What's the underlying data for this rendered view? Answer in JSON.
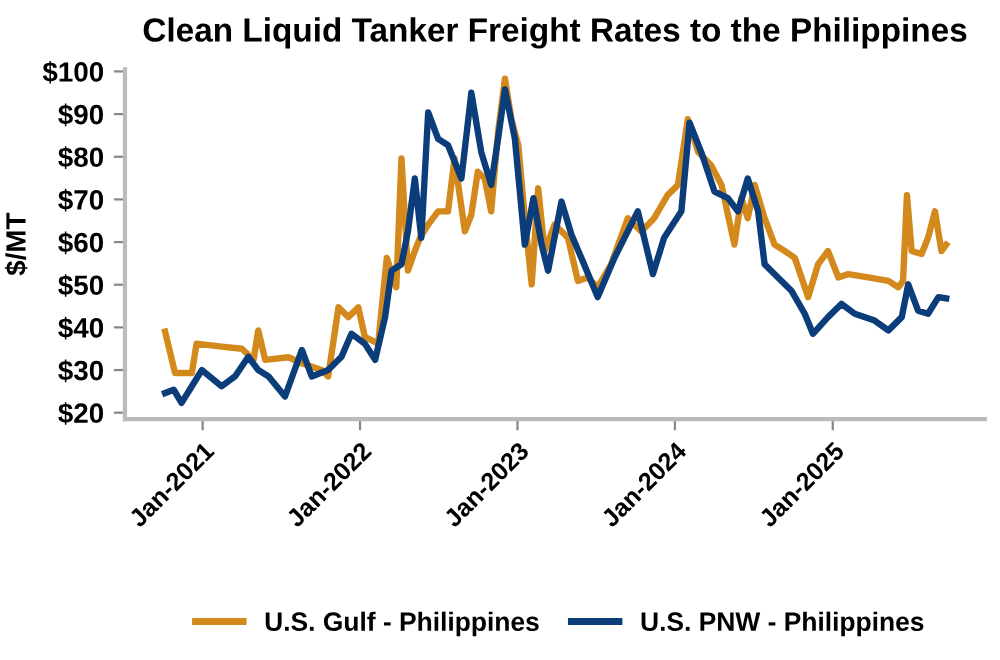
{
  "chart_data": {
    "type": "line",
    "title": "Clean Liquid Tanker Freight Rates to the Philippines",
    "ylabel": "$/MT",
    "xlim": [
      "2020-07-05",
      "2025-12-20"
    ],
    "xticks": [
      {
        "value": "2021-01-01",
        "label": "Jan-2021"
      },
      {
        "value": "2022-01-01",
        "label": "Jan-2022"
      },
      {
        "value": "2023-01-01",
        "label": "Jan-2023"
      },
      {
        "value": "2024-01-01",
        "label": "Jan-2024"
      },
      {
        "value": "2025-01-01",
        "label": "Jan-2025"
      }
    ],
    "ylim": [
      18.5,
      100.5
    ],
    "yticks": [
      {
        "value": 20,
        "label": "$20"
      },
      {
        "value": 30,
        "label": "$30"
      },
      {
        "value": 40,
        "label": "$40"
      },
      {
        "value": 50,
        "label": "$50"
      },
      {
        "value": 60,
        "label": "$60"
      },
      {
        "value": 70,
        "label": "$70"
      },
      {
        "value": 80,
        "label": "$80"
      },
      {
        "value": 90,
        "label": "$90"
      },
      {
        "value": 100,
        "label": "$100"
      }
    ],
    "grid": false,
    "legend": "bottom",
    "marker": "none",
    "line_style": "solid",
    "series": [
      {
        "name": "U.S. Gulf - Philippines",
        "color": "#d4891c",
        "x": [
          "2020-10-06",
          "2020-10-29",
          "2020-12-07",
          "2020-12-18",
          "2021-02-14",
          "2021-04-02",
          "2021-04-29",
          "2021-05-10",
          "2021-05-26",
          "2021-07-19",
          "2021-08-19",
          "2021-10-04",
          "2021-10-19",
          "2021-11-12",
          "2021-12-05",
          "2021-12-28",
          "2022-01-12",
          "2022-02-12",
          "2022-03-04",
          "2022-03-26",
          "2022-04-07",
          "2022-04-22",
          "2022-05-08",
          "2022-05-20",
          "2022-06-08",
          "2022-07-01",
          "2022-07-24",
          "2022-08-08",
          "2022-09-01",
          "2022-09-16",
          "2022-10-01",
          "2022-10-17",
          "2022-11-01",
          "2022-11-17",
          "2022-12-03",
          "2022-12-18",
          "2023-01-03",
          "2023-01-18",
          "2023-02-03",
          "2023-02-18",
          "2023-03-05",
          "2023-03-28",
          "2023-04-28",
          "2023-05-21",
          "2023-06-13",
          "2023-07-06",
          "2023-08-06",
          "2023-09-14",
          "2023-10-15",
          "2023-11-14",
          "2023-12-15",
          "2024-01-08",
          "2024-01-31",
          "2024-02-24",
          "2024-03-25",
          "2024-04-18",
          "2024-05-18",
          "2024-06-03",
          "2024-06-18",
          "2024-07-04",
          "2024-07-27",
          "2024-08-19",
          "2024-09-12",
          "2024-10-05",
          "2024-11-05",
          "2024-11-28",
          "2024-12-21",
          "2025-01-14",
          "2025-02-06",
          "2025-03-24",
          "2025-05-10",
          "2025-06-02",
          "2025-06-13",
          "2025-06-22",
          "2025-07-03",
          "2025-07-26",
          "2025-08-10",
          "2025-08-26",
          "2025-09-10",
          "2025-09-21"
        ],
        "values": [
          39.0,
          29.3,
          29.3,
          36.2,
          35.5,
          35.0,
          32.4,
          39.3,
          32.4,
          33.0,
          31.6,
          30.0,
          28.5,
          44.7,
          42.4,
          44.7,
          37.8,
          36.2,
          56.3,
          49.4,
          79.6,
          53.3,
          57.9,
          61.0,
          64.1,
          67.2,
          67.2,
          79.6,
          62.5,
          66.4,
          76.5,
          74.9,
          67.2,
          85.8,
          98.3,
          88.8,
          82.7,
          65.6,
          50.1,
          72.6,
          57.9,
          64.1,
          61.0,
          50.9,
          51.7,
          49.4,
          54.8,
          65.6,
          62.5,
          65.6,
          71.0,
          73.4,
          88.8,
          81.1,
          78.0,
          73.4,
          59.4,
          70.3,
          65.6,
          73.4,
          65.6,
          59.4,
          57.9,
          56.3,
          47.1,
          54.8,
          57.9,
          51.7,
          52.5,
          51.7,
          50.9,
          49.4,
          50.9,
          71.0,
          57.9,
          57.2,
          61.0,
          67.2,
          57.9,
          59.4
        ]
      },
      {
        "name": "U.S. PNW - Philippines",
        "color": "#0a3d7a",
        "x": [
          "2020-10-06",
          "2020-10-26",
          "2020-11-13",
          "2020-12-07",
          "2020-12-30",
          "2021-02-14",
          "2021-03-17",
          "2021-04-17",
          "2021-05-10",
          "2021-06-03",
          "2021-07-11",
          "2021-08-19",
          "2021-09-11",
          "2021-10-19",
          "2021-11-19",
          "2021-12-12",
          "2022-01-12",
          "2022-02-05",
          "2022-02-28",
          "2022-03-15",
          "2022-04-07",
          "2022-04-22",
          "2022-05-08",
          "2022-05-23",
          "2022-06-08",
          "2022-07-01",
          "2022-07-24",
          "2022-08-24",
          "2022-09-16",
          "2022-10-09",
          "2022-11-01",
          "2022-11-17",
          "2022-12-03",
          "2022-12-26",
          "2023-01-18",
          "2023-02-07",
          "2023-02-26",
          "2023-03-13",
          "2023-04-13",
          "2023-05-06",
          "2023-05-29",
          "2023-07-06",
          "2023-08-14",
          "2023-09-06",
          "2023-10-07",
          "2023-11-11",
          "2023-12-07",
          "2024-01-16",
          "2024-02-04",
          "2024-03-02",
          "2024-04-02",
          "2024-05-03",
          "2024-05-26",
          "2024-06-18",
          "2024-07-12",
          "2024-07-27",
          "2024-08-27",
          "2024-09-27",
          "2024-10-28",
          "2024-11-16",
          "2024-12-21",
          "2025-01-21",
          "2025-02-21",
          "2025-04-08",
          "2025-05-10",
          "2025-06-10",
          "2025-06-25",
          "2025-07-18",
          "2025-08-10",
          "2025-09-03",
          "2025-09-21"
        ],
        "values": [
          24.6,
          25.4,
          22.3,
          26.2,
          30.0,
          26.2,
          28.5,
          33.1,
          30.0,
          28.5,
          23.8,
          34.7,
          28.5,
          30.0,
          33.1,
          38.5,
          36.2,
          32.4,
          42.4,
          53.3,
          54.8,
          62.5,
          74.9,
          61.0,
          90.4,
          84.2,
          82.7,
          74.9,
          95.0,
          81.1,
          73.4,
          84.2,
          95.8,
          84.2,
          59.4,
          70.3,
          59.4,
          53.3,
          69.5,
          61.8,
          56.3,
          47.1,
          56.3,
          61.0,
          67.2,
          52.5,
          61.0,
          67.2,
          88.0,
          81.1,
          71.8,
          70.3,
          67.2,
          74.9,
          67.2,
          54.8,
          51.7,
          48.6,
          43.2,
          38.5,
          42.4,
          45.5,
          43.2,
          41.6,
          39.3,
          42.4,
          50.1,
          43.9,
          43.2,
          47.1,
          46.8
        ]
      }
    ]
  }
}
